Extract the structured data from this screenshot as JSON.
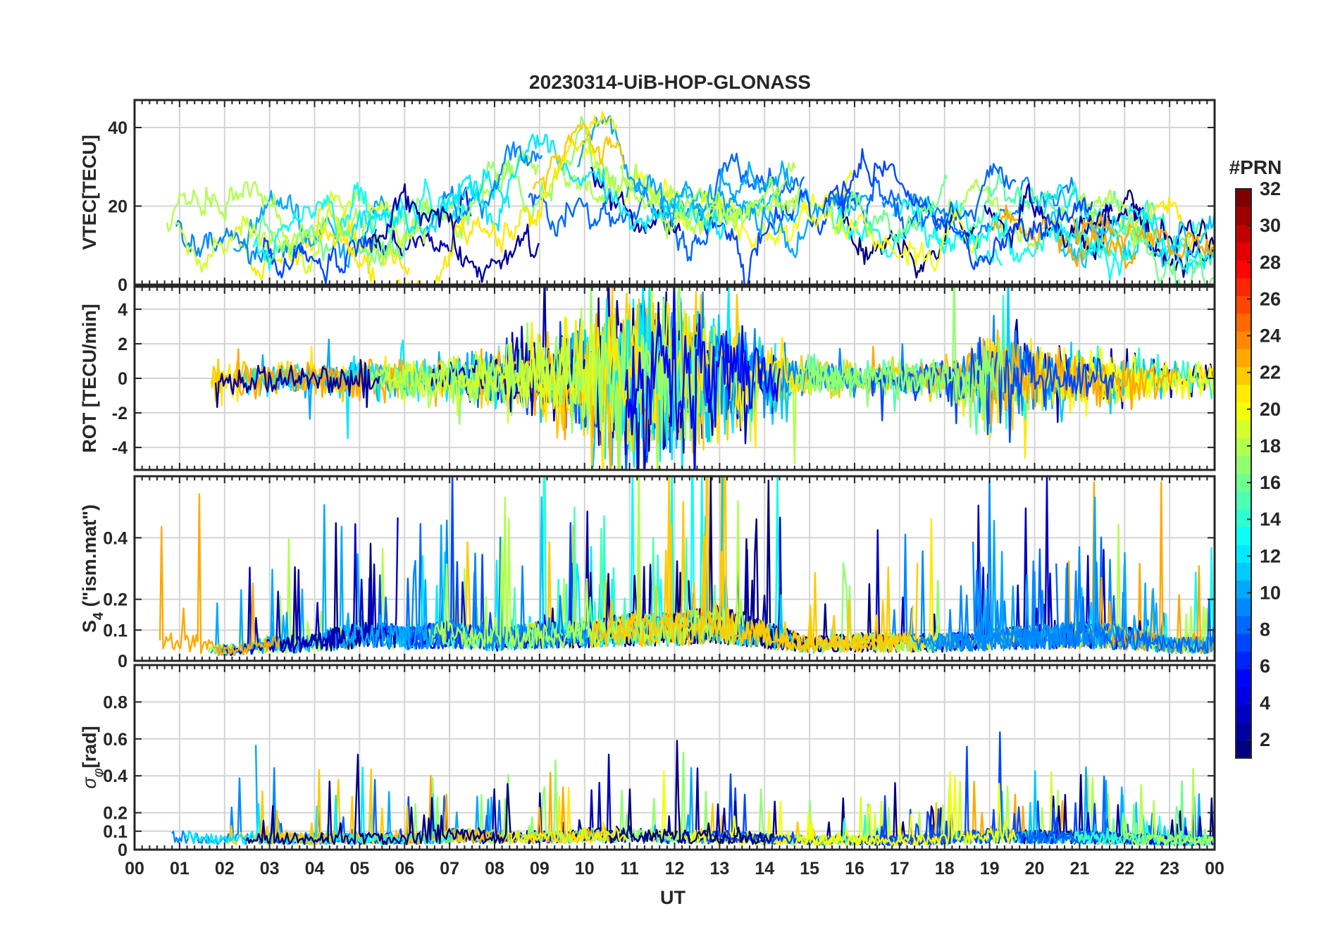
{
  "chart_data": {
    "type": "line",
    "title": "20230314-UiB-HOP-GLONASS",
    "xlabel": "UT",
    "x_range_hours": [
      0,
      24
    ],
    "x_tick_labels": [
      "00",
      "01",
      "02",
      "03",
      "04",
      "05",
      "06",
      "07",
      "08",
      "09",
      "10",
      "11",
      "12",
      "13",
      "14",
      "15",
      "16",
      "17",
      "18",
      "19",
      "20",
      "21",
      "22",
      "23",
      "00"
    ],
    "grid": true,
    "series_note_counts": 24,
    "panels": [
      {
        "id": "vtec",
        "ylabel": "VTEC[TECU]",
        "ylim": [
          0,
          47
        ],
        "yticks": [
          0,
          20,
          40
        ],
        "ytick_labels": [
          "0",
          "20",
          "40"
        ],
        "profile": [
          [
            0,
            12
          ],
          [
            1,
            15
          ],
          [
            2,
            11
          ],
          [
            3,
            9
          ],
          [
            4,
            11
          ],
          [
            5,
            14
          ],
          [
            6,
            15
          ],
          [
            7,
            16
          ],
          [
            8,
            19
          ],
          [
            9,
            24
          ],
          [
            10,
            31
          ],
          [
            11,
            26
          ],
          [
            12,
            20
          ],
          [
            13,
            19
          ],
          [
            14,
            20
          ],
          [
            15,
            21
          ],
          [
            16,
            19
          ],
          [
            17,
            15
          ],
          [
            18,
            15
          ],
          [
            19,
            17
          ],
          [
            20,
            15
          ],
          [
            21,
            15
          ],
          [
            22,
            13
          ],
          [
            23,
            10
          ],
          [
            24,
            8
          ]
        ]
      },
      {
        "id": "rot",
        "ylabel": "ROT [TECU/min]",
        "ylim": [
          -5.3,
          5.3
        ],
        "yticks": [
          -4,
          -2,
          0,
          2,
          4
        ],
        "ytick_labels": [
          "-4",
          "-2",
          "0",
          "2",
          "4"
        ],
        "activity": [
          [
            0,
            2.0
          ],
          [
            1,
            1.6
          ],
          [
            2,
            0.6
          ],
          [
            3,
            0.5
          ],
          [
            4,
            0.4
          ],
          [
            5,
            0.5
          ],
          [
            6,
            0.5
          ],
          [
            7,
            0.6
          ],
          [
            8,
            0.8
          ],
          [
            9,
            1.0
          ],
          [
            10,
            1.6
          ],
          [
            11,
            2.4
          ],
          [
            12,
            2.2
          ],
          [
            13,
            1.8
          ],
          [
            14,
            1.0
          ],
          [
            15,
            0.6
          ],
          [
            16,
            0.5
          ],
          [
            17,
            0.4
          ],
          [
            18,
            0.6
          ],
          [
            19,
            1.4
          ],
          [
            20,
            1.0
          ],
          [
            21,
            0.8
          ],
          [
            22,
            0.7
          ],
          [
            23,
            0.5
          ],
          [
            24,
            0.4
          ]
        ]
      },
      {
        "id": "s4",
        "ylabel": "S4 (\"ism.mat\")",
        "ylabel_base": "S",
        "ylabel_sub": "4",
        "ylabel_rest": " (\"ism.mat\")",
        "ylim": [
          0,
          0.6
        ],
        "yticks": [
          0,
          0.1,
          0.2,
          0.4
        ],
        "ytick_labels": [
          "0",
          "0.1",
          "0.2",
          "0.4"
        ],
        "profile": [
          [
            0,
            0.06
          ],
          [
            1,
            0.08
          ],
          [
            2,
            0.04
          ],
          [
            3,
            0.06
          ],
          [
            4,
            0.07
          ],
          [
            5,
            0.1
          ],
          [
            6,
            0.09
          ],
          [
            7,
            0.1
          ],
          [
            8,
            0.08
          ],
          [
            9,
            0.1
          ],
          [
            10,
            0.1
          ],
          [
            11,
            0.12
          ],
          [
            12,
            0.12
          ],
          [
            13,
            0.14
          ],
          [
            14,
            0.1
          ],
          [
            15,
            0.06
          ],
          [
            16,
            0.07
          ],
          [
            17,
            0.07
          ],
          [
            18,
            0.07
          ],
          [
            19,
            0.08
          ],
          [
            20,
            0.09
          ],
          [
            21,
            0.1
          ],
          [
            22,
            0.09
          ],
          [
            23,
            0.06
          ],
          [
            24,
            0.06
          ]
        ]
      },
      {
        "id": "sigma",
        "ylabel": "σφ[rad]",
        "ylabel_base": "σ",
        "ylabel_sub": "φ",
        "ylabel_rest": "[rad]",
        "ylim": [
          0,
          1.0
        ],
        "yticks": [
          0,
          0.1,
          0.2,
          0.4,
          0.6,
          0.8
        ],
        "ytick_labels": [
          "0",
          "0.1",
          "0.2",
          "0.4",
          "0.6",
          "0.8"
        ],
        "profile": [
          [
            0,
            0.07
          ],
          [
            1,
            0.08
          ],
          [
            2,
            0.07
          ],
          [
            3,
            0.07
          ],
          [
            4,
            0.07
          ],
          [
            5,
            0.07
          ],
          [
            6,
            0.07
          ],
          [
            7,
            0.09
          ],
          [
            8,
            0.08
          ],
          [
            9,
            0.08
          ],
          [
            10,
            0.09
          ],
          [
            11,
            0.09
          ],
          [
            12,
            0.08
          ],
          [
            13,
            0.08
          ],
          [
            14,
            0.07
          ],
          [
            15,
            0.06
          ],
          [
            16,
            0.06
          ],
          [
            17,
            0.06
          ],
          [
            18,
            0.07
          ],
          [
            19,
            0.09
          ],
          [
            20,
            0.08
          ],
          [
            21,
            0.08
          ],
          [
            22,
            0.07
          ],
          [
            23,
            0.06
          ],
          [
            24,
            0.06
          ]
        ]
      }
    ],
    "colorbar": {
      "label": "#PRN",
      "range": [
        1,
        32
      ],
      "ticks": [
        2,
        4,
        6,
        8,
        10,
        12,
        14,
        16,
        18,
        20,
        22,
        24,
        26,
        28,
        30,
        32
      ],
      "tick_labels": [
        "2",
        "4",
        "6",
        "8",
        "10",
        "12",
        "14",
        "16",
        "18",
        "20",
        "22",
        "24",
        "26",
        "28",
        "30",
        "32"
      ],
      "colormap": "jet"
    }
  }
}
